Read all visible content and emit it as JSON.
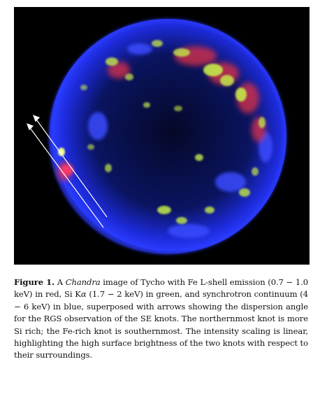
{
  "figure": {
    "label": "Figure 1.",
    "caption_parts": {
      "p1": " A ",
      "chandra": "Chandra",
      "p2": " image of Tycho with Fe L-shell emission (0.7 − 1.0 keV) in red, Si K",
      "alpha": "α",
      "p3": " (1.7 − 2 keV) in green, and synchrotron continuum (4 − 6 keV) in blue, superposed with arrows showing the dispersion angle for the RGS observation of the SE knots. The northernmost knot is more Si rich; the Fe-rich knot is southernmost. The intensity scaling is linear, highlighting the high surface brightness of the two knots with respect to their surroundings."
    },
    "image": {
      "subject": "Tycho supernova remnant",
      "colors": {
        "background": "#000000",
        "fe_emission": "#e0304a",
        "si_emission": "#b8e040",
        "synchrotron": "#2a3cff",
        "arrows": "#ffffff"
      }
    }
  }
}
